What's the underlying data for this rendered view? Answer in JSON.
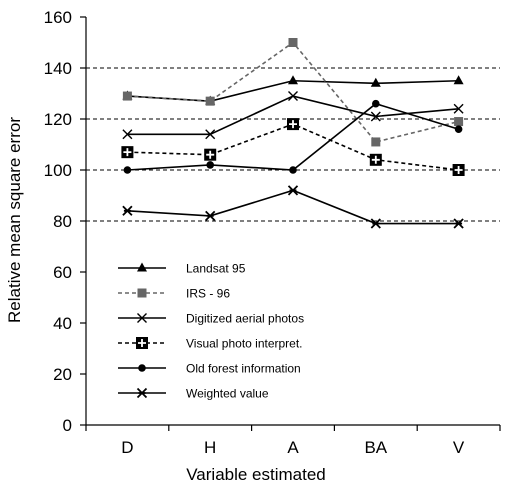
{
  "chart_data": {
    "type": "line",
    "title": "",
    "xlabel": "Variable estimated",
    "ylabel": "Relative mean square error",
    "categories": [
      "D",
      "H",
      "A",
      "BA",
      "V"
    ],
    "ylim": [
      0,
      160
    ],
    "yticks": [
      0,
      20,
      40,
      60,
      80,
      100,
      120,
      140,
      160
    ],
    "gridlines_at": [
      80,
      100,
      120,
      140
    ],
    "grid": "horizontal dashed",
    "legend_position": "lower-left inside plot",
    "series": [
      {
        "name": "Landsat 95",
        "values": [
          129,
          127,
          135,
          134,
          135
        ],
        "marker": "triangle",
        "dash": "solid",
        "color": "#000000"
      },
      {
        "name": "IRS - 96",
        "values": [
          129,
          127,
          150,
          111,
          119
        ],
        "marker": "square",
        "dash": "dotted",
        "color": "#666666"
      },
      {
        "name": "Digitized aerial photos",
        "values": [
          114,
          114,
          129,
          121,
          124
        ],
        "marker": "x",
        "dash": "solid",
        "color": "#000000"
      },
      {
        "name": "Visual photo interpret.",
        "values": [
          107,
          106,
          118,
          104,
          100
        ],
        "marker": "boxed-plus",
        "dash": "dotted",
        "color": "#000000"
      },
      {
        "name": "Old forest information",
        "values": [
          100,
          102,
          100,
          126,
          116
        ],
        "marker": "circle",
        "dash": "solid",
        "color": "#000000"
      },
      {
        "name": "Weighted value",
        "values": [
          84,
          82,
          92,
          79,
          79
        ],
        "marker": "star-x",
        "dash": "solid",
        "color": "#000000"
      }
    ]
  }
}
